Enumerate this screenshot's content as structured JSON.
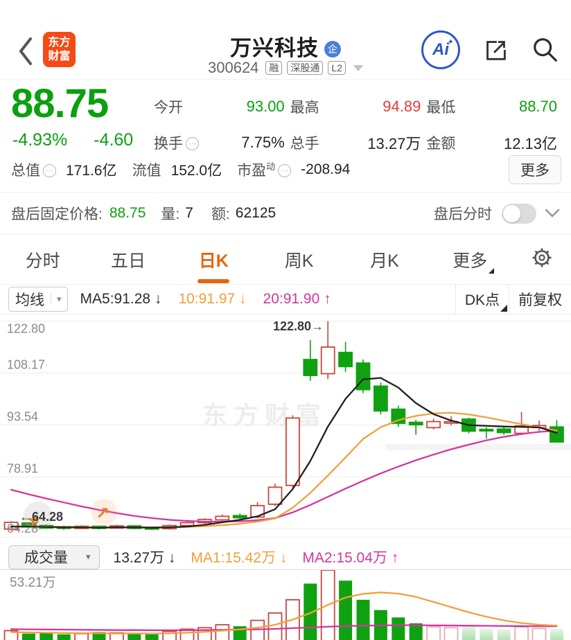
{
  "colors": {
    "green": "#0aa00e",
    "red": "#e53b3b",
    "dark": "#242424",
    "accent_orange": "#e8650f",
    "ma5_black": "#1f1f1f",
    "ma10_orange": "#f0a03a",
    "ma20_magenta": "#d5359e"
  },
  "icons": {
    "caret_down": "▾",
    "sparkle": "✦",
    "double_chevron": "»",
    "up_right_arrow": "↗"
  },
  "header": {
    "logo": {
      "line1": "东方",
      "line2": "财富"
    },
    "title": "万兴科技",
    "title_badge": "企",
    "code": "300624",
    "tags": [
      "融",
      "深股通",
      "L2"
    ],
    "ai_label": "Ai"
  },
  "quote": {
    "price": "88.75",
    "change_pct": "-4.93%",
    "change_abs": "-4.60",
    "stats": [
      {
        "label": "今开",
        "value": "93.00",
        "tone": "green"
      },
      {
        "label": "最高",
        "value": "94.89",
        "tone": "red"
      },
      {
        "label": "最低",
        "value": "88.70",
        "tone": "green"
      },
      {
        "label": "换手",
        "value": "7.75%",
        "tone": "dark"
      },
      {
        "label": "总手",
        "value": "13.27万",
        "tone": "dark"
      },
      {
        "label": "金额",
        "value": "12.13亿",
        "tone": "dark"
      }
    ],
    "stats2": [
      {
        "label": "总值",
        "value": "171.6亿"
      },
      {
        "label": "流值",
        "value": "152.0亿"
      },
      {
        "label": "市盈",
        "sup": "动",
        "value": "-208.94"
      }
    ],
    "more_label": "更多"
  },
  "afterhours": {
    "label": "盘后固定价格:",
    "price": "88.75",
    "vol_label": "量:",
    "vol_value": "7",
    "amt_label": "额:",
    "amt_value": "62125",
    "right_label": "盘后分时"
  },
  "tabs": {
    "items": [
      "分时",
      "五日",
      "日K",
      "周K",
      "月K",
      "更多"
    ],
    "active": "日K"
  },
  "indicator_bar": {
    "dropdown": "均线",
    "ma5": "MA5:91.28 ↓",
    "ma10": "10:91.97 ↓",
    "ma20": "20:91.90 ↑",
    "dk": "DK点",
    "adjust": "前复权"
  },
  "volume_bar": {
    "dropdown": "成交量",
    "current": "13.27万 ↓",
    "ma1": "MA1:15.42万 ↓",
    "ma2": "MA2:15.04万 ↑"
  },
  "chart_data": {
    "type": "candlestick+volume",
    "watermark": "东方财富",
    "y_axis_labels": [
      "122.80",
      "108.17",
      "93.54",
      "78.91",
      "64.28"
    ],
    "y_axis_values": [
      122.8,
      108.17,
      93.54,
      78.91,
      64.28
    ],
    "price_range": [
      63.0,
      124.5
    ],
    "annotations": {
      "high": "122.80→",
      "low": "←64.28"
    },
    "vol_max_label": "53.21万",
    "vol_axis_max": 53.21,
    "vol_fade_from": 24,
    "candles_format": "open,high,low,close,volume(万)",
    "candles": [
      [
        64.2,
        66.4,
        63.8,
        66.1,
        12
      ],
      [
        65.9,
        66.1,
        64.5,
        64.8,
        10
      ],
      [
        65.2,
        65.5,
        64.2,
        64.5,
        10.5
      ],
      [
        64.9,
        65.2,
        64.0,
        64.4,
        9.5
      ],
      [
        64.4,
        65.3,
        64.2,
        65.0,
        10
      ],
      [
        65.0,
        65.2,
        64.1,
        64.4,
        11
      ],
      [
        64.5,
        65.4,
        64.3,
        65.1,
        10.5
      ],
      [
        65.1,
        65.3,
        64.1,
        64.4,
        10
      ],
      [
        64.7,
        64.9,
        63.9,
        64.2,
        9.5
      ],
      [
        64.3,
        65.5,
        64.1,
        65.2,
        11.5
      ],
      [
        65.2,
        66.3,
        64.9,
        66.0,
        13
      ],
      [
        66.0,
        67.3,
        65.7,
        66.9,
        14
      ],
      [
        66.8,
        68.3,
        66.5,
        67.8,
        16
      ],
      [
        68.0,
        68.6,
        67.0,
        67.4,
        15
      ],
      [
        67.6,
        71.8,
        67.3,
        70.8,
        19
      ],
      [
        71.2,
        77.0,
        70.7,
        76.0,
        24
      ],
      [
        76.5,
        96.3,
        75.8,
        95.5,
        33
      ],
      [
        112.0,
        117.5,
        106.0,
        107.5,
        44
      ],
      [
        108.0,
        122.8,
        106.5,
        115.5,
        53.21
      ],
      [
        114.0,
        117.0,
        108.5,
        110.0,
        46
      ],
      [
        111.0,
        112.0,
        102.5,
        103.5,
        33
      ],
      [
        104.5,
        105.5,
        96.5,
        97.5,
        26
      ],
      [
        98.0,
        99.0,
        93.0,
        94.0,
        21
      ],
      [
        94.3,
        95.0,
        90.8,
        93.6,
        17
      ],
      [
        92.8,
        95.3,
        92.3,
        94.5,
        14.5
      ],
      [
        94.2,
        96.0,
        93.4,
        94.5,
        14
      ],
      [
        95.2,
        95.6,
        91.2,
        91.8,
        15.5
      ],
      [
        92.3,
        92.9,
        89.7,
        92.0,
        13.5
      ],
      [
        92.4,
        93.0,
        90.8,
        91.4,
        13
      ],
      [
        91.2,
        97.2,
        90.7,
        93.3,
        14.5
      ],
      [
        92.8,
        94.8,
        91.9,
        93.4,
        13.5
      ],
      [
        93.0,
        94.89,
        88.7,
        88.75,
        13.27
      ]
    ],
    "ma5": [
      64.9,
      64.9,
      64.8,
      64.7,
      64.7,
      64.6,
      64.7,
      64.7,
      64.6,
      64.7,
      64.9,
      65.4,
      66.1,
      66.8,
      67.8,
      69.8,
      75.5,
      83.4,
      93.1,
      100.9,
      106.4,
      106.8,
      104.1,
      99.7,
      96.6,
      94.8,
      93.5,
      93.3,
      93.1,
      93.0,
      92.9,
      91.28
    ],
    "ma10": [
      65.0,
      64.9,
      64.9,
      64.8,
      64.8,
      64.7,
      64.7,
      64.7,
      64.7,
      64.7,
      64.8,
      65.0,
      65.3,
      65.7,
      66.3,
      67.2,
      70.2,
      74.4,
      79.3,
      84.4,
      89.6,
      92.9,
      94.9,
      96.1,
      96.8,
      97.0,
      96.5,
      95.7,
      94.7,
      93.8,
      92.8,
      91.97
    ],
    "ma20": [
      75.3,
      74.0,
      72.8,
      71.7,
      70.6,
      69.6,
      68.7,
      67.9,
      67.3,
      66.8,
      66.5,
      66.3,
      66.3,
      66.4,
      66.7,
      67.3,
      68.9,
      71.0,
      73.3,
      75.6,
      77.8,
      79.9,
      81.8,
      83.6,
      85.2,
      86.7,
      88.0,
      89.2,
      90.2,
      91.0,
      91.6,
      91.9
    ],
    "vol_ma1": [
      11,
      10.8,
      10.6,
      10.4,
      10.3,
      10.2,
      10.1,
      10.1,
      10.0,
      10.2,
      10.6,
      11.2,
      12.0,
      12.8,
      14.0,
      16.0,
      19.5,
      24.0,
      29.5,
      34.5,
      37.0,
      38.0,
      37.2,
      35.0,
      31.5,
      28.0,
      24.5,
      21.5,
      19.0,
      17.2,
      16.0,
      15.42
    ],
    "vol_ma2": [
      13.0,
      12.9,
      12.8,
      12.7,
      12.6,
      12.5,
      12.4,
      12.4,
      12.3,
      12.3,
      12.3,
      12.4,
      12.5,
      12.7,
      12.9,
      13.2,
      13.7,
      14.2,
      14.7,
      15.1,
      15.4,
      15.6,
      15.7,
      15.7,
      15.6,
      15.5,
      15.4,
      15.3,
      15.2,
      15.1,
      15.05,
      15.04
    ],
    "candle_colors": {
      "up": "#c9463f",
      "down": "#10a110"
    }
  }
}
